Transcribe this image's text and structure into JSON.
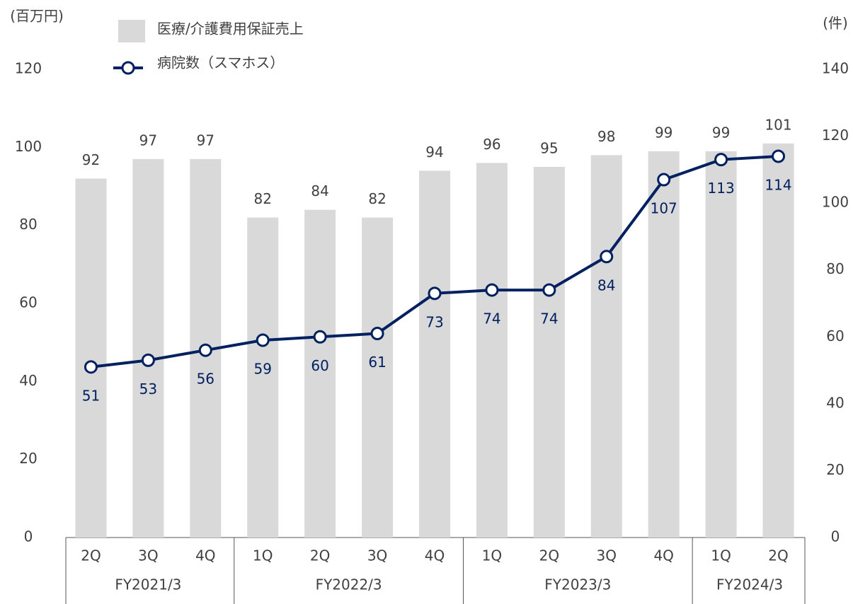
{
  "chart_data": {
    "type": "bar-line",
    "y_unit": "(百万円)",
    "y2_unit": "(件)",
    "groups": [
      {
        "name": "FY2021/3",
        "categories": [
          "2Q",
          "3Q",
          "4Q"
        ]
      },
      {
        "name": "FY2022/3",
        "categories": [
          "1Q",
          "2Q",
          "3Q",
          "4Q"
        ]
      },
      {
        "name": "FY2023/3",
        "categories": [
          "1Q",
          "2Q",
          "3Q",
          "4Q"
        ]
      },
      {
        "name": "FY2024/3",
        "categories": [
          "1Q",
          "2Q"
        ]
      }
    ],
    "series": [
      {
        "name": "医療/介護費用保証売上",
        "color": "#d9d9d9",
        "values": [
          92,
          97,
          97,
          82,
          84,
          82,
          94,
          96,
          95,
          98,
          99,
          99,
          101
        ]
      },
      {
        "name": "病院数（スマホス）",
        "color": "#002060",
        "axis": "y2",
        "values": [
          51,
          53,
          56,
          59,
          60,
          61,
          73,
          74,
          74,
          84,
          107,
          113,
          114
        ]
      }
    ],
    "ylim": [
      0,
      120
    ],
    "yticks": [
      0,
      20,
      40,
      60,
      80,
      100,
      120
    ],
    "y2lim": [
      0,
      140
    ],
    "y2ticks": [
      0,
      20,
      40,
      60,
      80,
      100,
      120,
      140
    ]
  }
}
